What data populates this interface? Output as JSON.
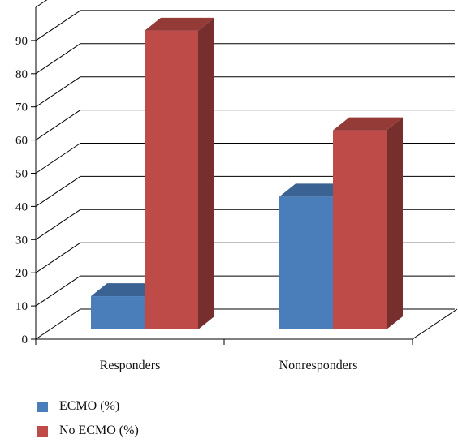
{
  "chart_data": {
    "type": "bar",
    "three_d": true,
    "categories": [
      "Responders",
      "Nonresponders"
    ],
    "series": [
      {
        "name": "ECMO (%)",
        "values": [
          10,
          40
        ],
        "color": "#4a7ebb"
      },
      {
        "name": "No ECMO (%)",
        "values": [
          90,
          60
        ],
        "color": "#be4b48"
      }
    ],
    "ylim": [
      0,
      90
    ],
    "yticks": [
      0,
      10,
      20,
      30,
      40,
      50,
      60,
      70,
      80,
      90
    ],
    "grid": true,
    "legend_position": "bottom-left",
    "title": "",
    "xlabel": "",
    "ylabel": ""
  }
}
